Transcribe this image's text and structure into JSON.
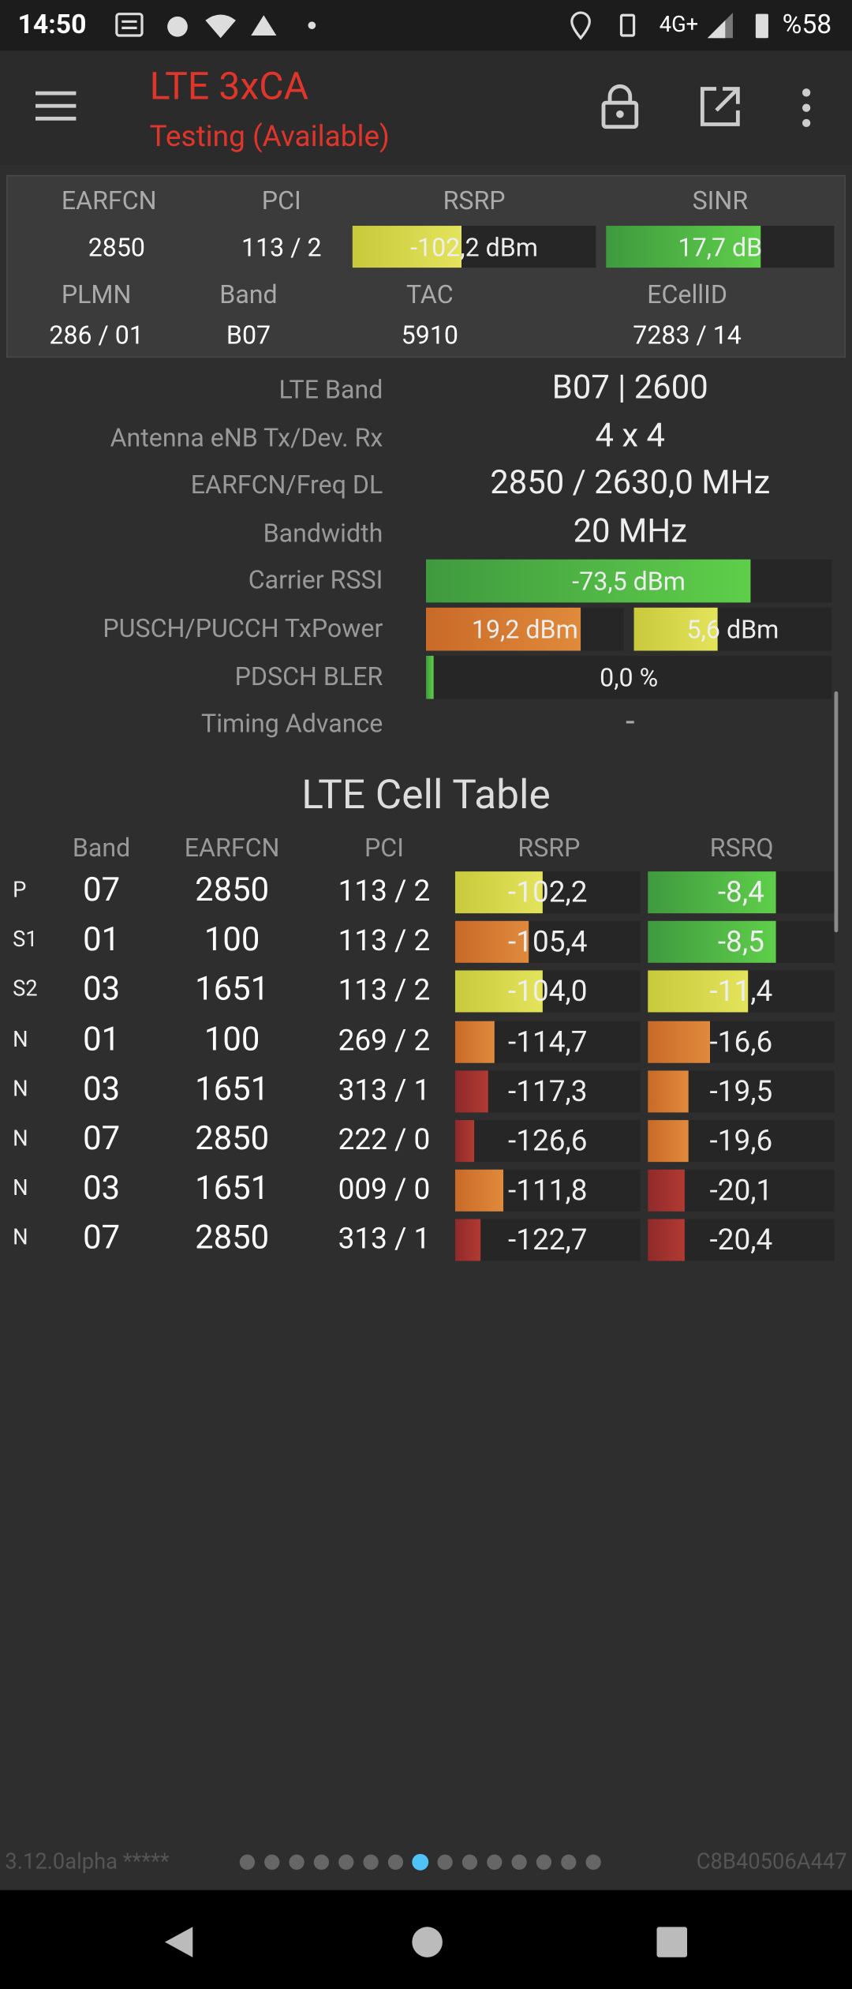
{
  "status_bar": {
    "time": "14:50",
    "network": "4G+",
    "battery": "%58"
  },
  "toolbar": {
    "title": "LTE 3xCA",
    "subtitle": "Testing (Available)"
  },
  "summary": {
    "headers_1": [
      "EARFCN",
      "PCI",
      "RSRP",
      "SINR"
    ],
    "values_1": [
      "2850",
      "113 / 2",
      "-102,2 dBm",
      "17,7 dB"
    ],
    "headers_2": [
      "PLMN",
      "Band",
      "TAC",
      "ECellID"
    ],
    "values_2": [
      "286 / 01",
      "B07",
      "5910",
      "7283 / 14"
    ]
  },
  "details": [
    {
      "label": "LTE Band",
      "value": "B07 | 2600"
    },
    {
      "label": "Antenna eNB Tx/Dev. Rx",
      "value": "4 x 4"
    },
    {
      "label": "EARFCN/Freq DL",
      "value": "2850 / 2630,0 MHz"
    },
    {
      "label": "Bandwidth",
      "value": "20 MHz"
    },
    {
      "label": "Carrier RSSI",
      "value": "-73,5 dBm"
    },
    {
      "label": "PUSCH/PUCCH TxPower",
      "value": "19,2 dBm",
      "value_2": "5,6 dBm"
    },
    {
      "label": "PDSCH BLER",
      "value": "0,0 %"
    },
    {
      "label": "Timing Advance",
      "value": "-"
    }
  ],
  "cell_table": {
    "title": "LTE Cell Table",
    "columns": [
      "Band",
      "EARFCN",
      "PCI",
      "RSRP",
      "RSRQ"
    ],
    "rows": [
      [
        "P",
        "07",
        "2850",
        "113 / 2",
        "-102,2",
        "-8,4"
      ],
      [
        "S1",
        "01",
        "100",
        "113 / 2",
        "-105,4",
        "-8,5"
      ],
      [
        "S2",
        "03",
        "1651",
        "113 / 2",
        "-104,0",
        "-11,4"
      ],
      [
        "N",
        "01",
        "100",
        "269 / 2",
        "-114,7",
        "-16,6"
      ],
      [
        "N",
        "03",
        "1651",
        "313 / 1",
        "-117,3",
        "-19,5"
      ],
      [
        "N",
        "07",
        "2850",
        "222 / 0",
        "-126,6",
        "-19,6"
      ],
      [
        "N",
        "03",
        "1651",
        "009 / 0",
        "-111,8",
        "-20,1"
      ],
      [
        "N",
        "07",
        "2850",
        "313 / 1",
        "-122,7",
        "-20,4"
      ]
    ]
  },
  "footer": {
    "version": "3.12.0alpha *****",
    "device_id": "C8B40506A447"
  }
}
